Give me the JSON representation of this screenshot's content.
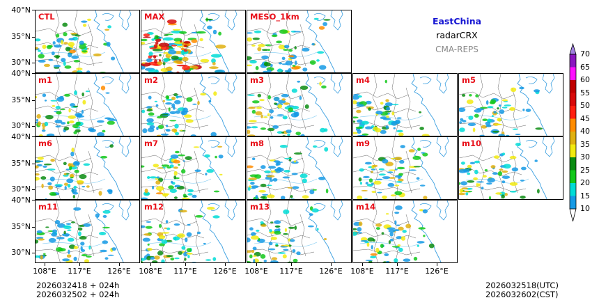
{
  "info": {
    "region": "EastChina",
    "variable": "radarCRX",
    "system": "CMA-REPS",
    "region_color": "#1414d2",
    "system_color": "#888888"
  },
  "lat_labels": [
    "40°N",
    "35°N",
    "30°N"
  ],
  "lon_labels": [
    "108°E",
    "117°E",
    "126°E"
  ],
  "rows": [
    [
      "CTL",
      "MAX",
      "MESO_1km"
    ],
    [
      "m1",
      "m2",
      "m3",
      "m4",
      "m5"
    ],
    [
      "m6",
      "m7",
      "m8",
      "m9",
      "m10"
    ],
    [
      "m11",
      "m12",
      "m13",
      "m14"
    ]
  ],
  "colorbar": {
    "levels": [
      "10",
      "15",
      "20",
      "25",
      "30",
      "35",
      "40",
      "45",
      "50",
      "55",
      "60",
      "65",
      "70"
    ],
    "colors": [
      "#159ae5",
      "#00dcd6",
      "#12c81a",
      "#0a8c12",
      "#f2ea10",
      "#e0b010",
      "#ff8c00",
      "#ff2010",
      "#d80a0a",
      "#c00000",
      "#ff10ff",
      "#8a18c0",
      "#a080e0"
    ]
  },
  "footer": {
    "init_utc": "2026032418  +  024h",
    "init_cst": "2026032502  +  024h",
    "valid_utc": "2026032518(UTC)",
    "valid_cst": "2026032602(CST)"
  }
}
